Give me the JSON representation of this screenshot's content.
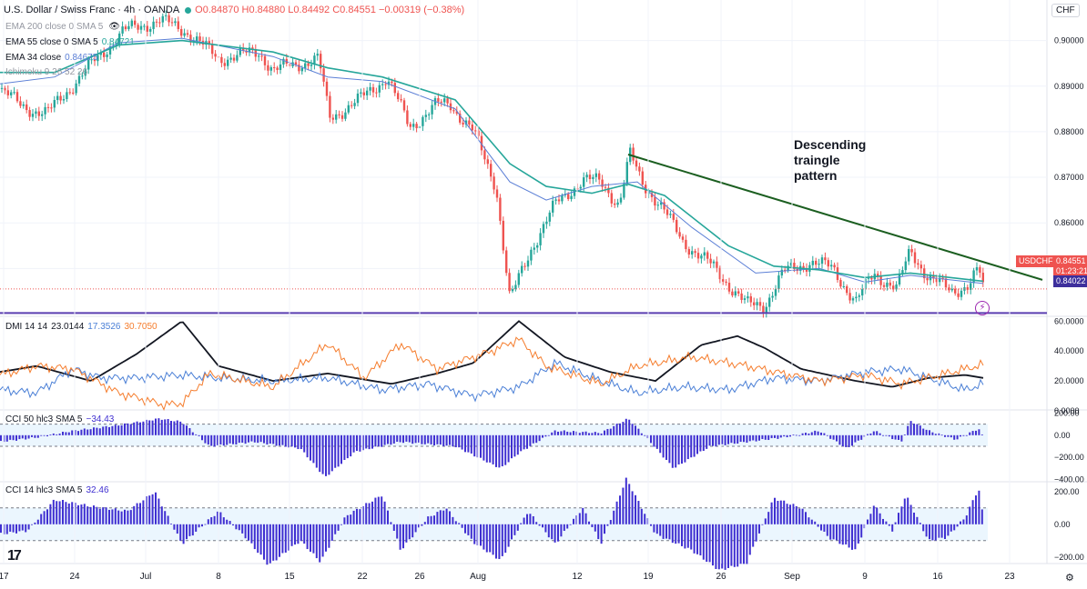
{
  "header": {
    "title": "U.S. Dollar / Swiss Franc · 4h · OANDA",
    "ohlc": "O0.84870 H0.84880 L0.84492 C0.84551 −0.00319 (−0.38%)",
    "currency": "CHF"
  },
  "legends": {
    "ema200": "EMA 200 close 0 SMA 5",
    "ema55": "EMA 55 close 0 SMA 5",
    "ema55_value": "0.84721",
    "ema34": "EMA 34 close",
    "ema34_value": "0.84675",
    "ichimoku": "Ichimoku 9 26 52 26",
    "dmi": "DMI 14 14",
    "dmi_adx": "23.0144",
    "dmi_plus": "17.3526",
    "dmi_minus": "30.7050",
    "cci50": "CCI 50 hlc3 SMA 5",
    "cci50_value": "−34.43",
    "cci14": "CCI 14 hlc3 SMA 5",
    "cci14_value": "32.46"
  },
  "price_tags": {
    "symbol": "USDCHF",
    "last": "0.84551",
    "countdown": "01:23:21",
    "support": "0.84022"
  },
  "annotation": [
    "Descending",
    "traingle",
    "pattern"
  ],
  "icons": {
    "tv_logo": "17",
    "settings": "⚙",
    "bolt": "⚡",
    "eye": "👁"
  },
  "colors": {
    "up": "#26a69a",
    "down": "#ef5350",
    "ema55": "#26a69a",
    "ema34": "#5b7fd6",
    "trendline": "#1b5e20",
    "support": "#5a3fb0",
    "adx": "#131722",
    "di_plus": "#4a7fd6",
    "di_minus": "#f57c2c",
    "histogram": "#3f2fd1",
    "band": "#e3f2fd"
  },
  "chart_data": [
    {
      "type": "candlestick",
      "title": "U.S. Dollar / Swiss Franc · 4h · OANDA",
      "x_labels": [
        "17",
        "24",
        "Jul",
        "8",
        "15",
        "22",
        "26",
        "Aug",
        "12",
        "19",
        "26",
        "Sep",
        "9",
        "16",
        "23"
      ],
      "y_ticks": [
        "0.90000",
        "0.89000",
        "0.88000",
        "0.87000",
        "0.86000",
        "0.85000"
      ],
      "ylim": [
        0.8395,
        0.9085
      ],
      "close_path": [
        [
          0,
          0.8895
        ],
        [
          24,
          0.8855
        ],
        [
          52,
          0.884
        ],
        [
          90,
          0.8925
        ],
        [
          135,
          0.902
        ],
        [
          175,
          0.9045
        ],
        [
          205,
          0.902
        ],
        [
          240,
          0.896
        ],
        [
          285,
          0.8975
        ],
        [
          300,
          0.8935
        ],
        [
          350,
          0.896
        ],
        [
          362,
          0.883
        ],
        [
          395,
          0.887
        ],
        [
          425,
          0.892
        ],
        [
          450,
          0.881
        ],
        [
          480,
          0.886
        ],
        [
          495,
          0.886
        ],
        [
          520,
          0.88
        ],
        [
          545,
          0.868
        ],
        [
          560,
          0.843
        ],
        [
          585,
          0.855
        ],
        [
          610,
          0.864
        ],
        [
          640,
          0.8695
        ],
        [
          660,
          0.869
        ],
        [
          680,
          0.864
        ],
        [
          692,
          0.875
        ],
        [
          705,
          0.869
        ],
        [
          725,
          0.864
        ],
        [
          750,
          0.856
        ],
        [
          785,
          0.85
        ],
        [
          820,
          0.842
        ],
        [
          840,
          0.842
        ],
        [
          860,
          0.849
        ],
        [
          890,
          0.8515
        ],
        [
          915,
          0.85
        ],
        [
          940,
          0.8425
        ],
        [
          960,
          0.849
        ],
        [
          985,
          0.8455
        ],
        [
          1000,
          0.854
        ],
        [
          1020,
          0.848
        ],
        [
          1045,
          0.845
        ],
        [
          1065,
          0.8465
        ],
        [
          1075,
          0.85
        ],
        [
          1080,
          0.8455
        ]
      ],
      "ema55_path": [
        [
          0,
          0.893
        ],
        [
          60,
          0.893
        ],
        [
          130,
          0.899
        ],
        [
          200,
          0.9
        ],
        [
          300,
          0.8975
        ],
        [
          360,
          0.894
        ],
        [
          420,
          0.892
        ],
        [
          500,
          0.887
        ],
        [
          560,
          0.873
        ],
        [
          600,
          0.868
        ],
        [
          650,
          0.8665
        ],
        [
          690,
          0.8685
        ],
        [
          730,
          0.866
        ],
        [
          800,
          0.855
        ],
        [
          850,
          0.8505
        ],
        [
          900,
          0.8497
        ],
        [
          950,
          0.848
        ],
        [
          1000,
          0.849
        ],
        [
          1080,
          0.8472
        ]
      ],
      "ema34_path": [
        [
          0,
          0.8905
        ],
        [
          60,
          0.892
        ],
        [
          130,
          0.8995
        ],
        [
          200,
          0.9005
        ],
        [
          300,
          0.8965
        ],
        [
          360,
          0.892
        ],
        [
          420,
          0.891
        ],
        [
          500,
          0.885
        ],
        [
          560,
          0.869
        ],
        [
          600,
          0.865
        ],
        [
          650,
          0.868
        ],
        [
          700,
          0.869
        ],
        [
          760,
          0.859
        ],
        [
          830,
          0.849
        ],
        [
          900,
          0.85
        ],
        [
          950,
          0.847
        ],
        [
          1000,
          0.8485
        ],
        [
          1080,
          0.8467
        ]
      ],
      "trendline": [
        [
          690,
          0.875
        ],
        [
          1145,
          0.8475
        ]
      ],
      "support_level": 0.84022,
      "last_price": 0.84551
    },
    {
      "type": "line",
      "title": "DMI 14 14",
      "y_ticks": [
        "60.0000",
        "40.0000",
        "20.0000",
        "0.0000"
      ],
      "ylim": [
        0,
        62
      ],
      "series": [
        {
          "name": "ADX",
          "values": [
            [
              0,
              26
            ],
            [
              40,
              30
            ],
            [
              100,
              20
            ],
            [
              150,
              38
            ],
            [
              200,
              60
            ],
            [
              240,
              30
            ],
            [
              300,
              20
            ],
            [
              360,
              25
            ],
            [
              430,
              18
            ],
            [
              480,
              25
            ],
            [
              520,
              32
            ],
            [
              570,
              60
            ],
            [
              620,
              36
            ],
            [
              670,
              26
            ],
            [
              720,
              20
            ],
            [
              770,
              44
            ],
            [
              810,
              50
            ],
            [
              840,
              42
            ],
            [
              880,
              28
            ],
            [
              940,
              20
            ],
            [
              980,
              16
            ],
            [
              1020,
              22
            ],
            [
              1060,
              24
            ],
            [
              1080,
              22
            ]
          ]
        },
        {
          "name": "DI+",
          "values": [
            [
              0,
              14
            ],
            [
              40,
              12
            ],
            [
              80,
              28
            ],
            [
              110,
              22
            ],
            [
              150,
              22
            ],
            [
              200,
              24
            ],
            [
              240,
              22
            ],
            [
              300,
              20
            ],
            [
              360,
              22
            ],
            [
              420,
              14
            ],
            [
              470,
              18
            ],
            [
              520,
              10
            ],
            [
              570,
              16
            ],
            [
              610,
              32
            ],
            [
              660,
              20
            ],
            [
              700,
              12
            ],
            [
              750,
              16
            ],
            [
              800,
              14
            ],
            [
              850,
              22
            ],
            [
              900,
              20
            ],
            [
              950,
              26
            ],
            [
              990,
              28
            ],
            [
              1030,
              20
            ],
            [
              1060,
              14
            ],
            [
              1080,
              18
            ]
          ]
        },
        {
          "name": "DI−",
          "values": [
            [
              0,
              24
            ],
            [
              40,
              30
            ],
            [
              80,
              28
            ],
            [
              130,
              12
            ],
            [
              180,
              4
            ],
            [
              200,
              5
            ],
            [
              230,
              25
            ],
            [
              300,
              16
            ],
            [
              360,
              45
            ],
            [
              400,
              22
            ],
            [
              440,
              45
            ],
            [
              480,
              28
            ],
            [
              540,
              40
            ],
            [
              570,
              48
            ],
            [
              600,
              30
            ],
            [
              660,
              18
            ],
            [
              700,
              30
            ],
            [
              760,
              36
            ],
            [
              820,
              30
            ],
            [
              860,
              25
            ],
            [
              900,
              20
            ],
            [
              950,
              24
            ],
            [
              990,
              18
            ],
            [
              1040,
              25
            ],
            [
              1080,
              31
            ]
          ]
        }
      ]
    },
    {
      "type": "bar",
      "title": "CCI 50 hlc3 SMA 5",
      "y_ticks": [
        "200.00",
        "0.00",
        "−200.00",
        "−400.00"
      ],
      "ylim": [
        -420,
        220
      ],
      "band": [
        100,
        -100
      ],
      "histogram_path": [
        [
          0,
          -60
        ],
        [
          40,
          -20
        ],
        [
          80,
          40
        ],
        [
          130,
          90
        ],
        [
          175,
          150
        ],
        [
          200,
          120
        ],
        [
          230,
          -100
        ],
        [
          280,
          -60
        ],
        [
          330,
          -120
        ],
        [
          357,
          -380
        ],
        [
          390,
          -150
        ],
        [
          440,
          -60
        ],
        [
          500,
          -100
        ],
        [
          550,
          -300
        ],
        [
          570,
          -160
        ],
        [
          610,
          40
        ],
        [
          660,
          20
        ],
        [
          690,
          150
        ],
        [
          710,
          -20
        ],
        [
          740,
          -300
        ],
        [
          780,
          -100
        ],
        [
          820,
          -60
        ],
        [
          860,
          -20
        ],
        [
          900,
          40
        ],
        [
          930,
          -120
        ],
        [
          960,
          40
        ],
        [
          990,
          -60
        ],
        [
          1000,
          130
        ],
        [
          1020,
          40
        ],
        [
          1050,
          -40
        ],
        [
          1075,
          60
        ],
        [
          1080,
          -20
        ]
      ]
    },
    {
      "type": "bar",
      "title": "CCI 14 hlc3 SMA 5",
      "y_ticks": [
        "200.00",
        "0.00",
        "−200.00"
      ],
      "ylim": [
        -240,
        260
      ],
      "band": [
        100,
        -100
      ],
      "histogram_path": [
        [
          0,
          -60
        ],
        [
          30,
          -40
        ],
        [
          60,
          150
        ],
        [
          100,
          110
        ],
        [
          140,
          80
        ],
        [
          170,
          200
        ],
        [
          200,
          -120
        ],
        [
          240,
          80
        ],
        [
          270,
          -80
        ],
        [
          295,
          -250
        ],
        [
          330,
          -100
        ],
        [
          352,
          -230
        ],
        [
          380,
          50
        ],
        [
          420,
          180
        ],
        [
          440,
          -160
        ],
        [
          470,
          40
        ],
        [
          490,
          100
        ],
        [
          520,
          -110
        ],
        [
          550,
          -220
        ],
        [
          580,
          80
        ],
        [
          610,
          -120
        ],
        [
          640,
          100
        ],
        [
          660,
          -120
        ],
        [
          688,
          280
        ],
        [
          720,
          -60
        ],
        [
          760,
          -160
        ],
        [
          790,
          -280
        ],
        [
          820,
          -240
        ],
        [
          850,
          160
        ],
        [
          880,
          100
        ],
        [
          910,
          -80
        ],
        [
          940,
          -160
        ],
        [
          960,
          120
        ],
        [
          980,
          -40
        ],
        [
          995,
          180
        ],
        [
          1020,
          -100
        ],
        [
          1040,
          -80
        ],
        [
          1060,
          40
        ],
        [
          1075,
          220
        ],
        [
          1080,
          40
        ]
      ]
    }
  ]
}
